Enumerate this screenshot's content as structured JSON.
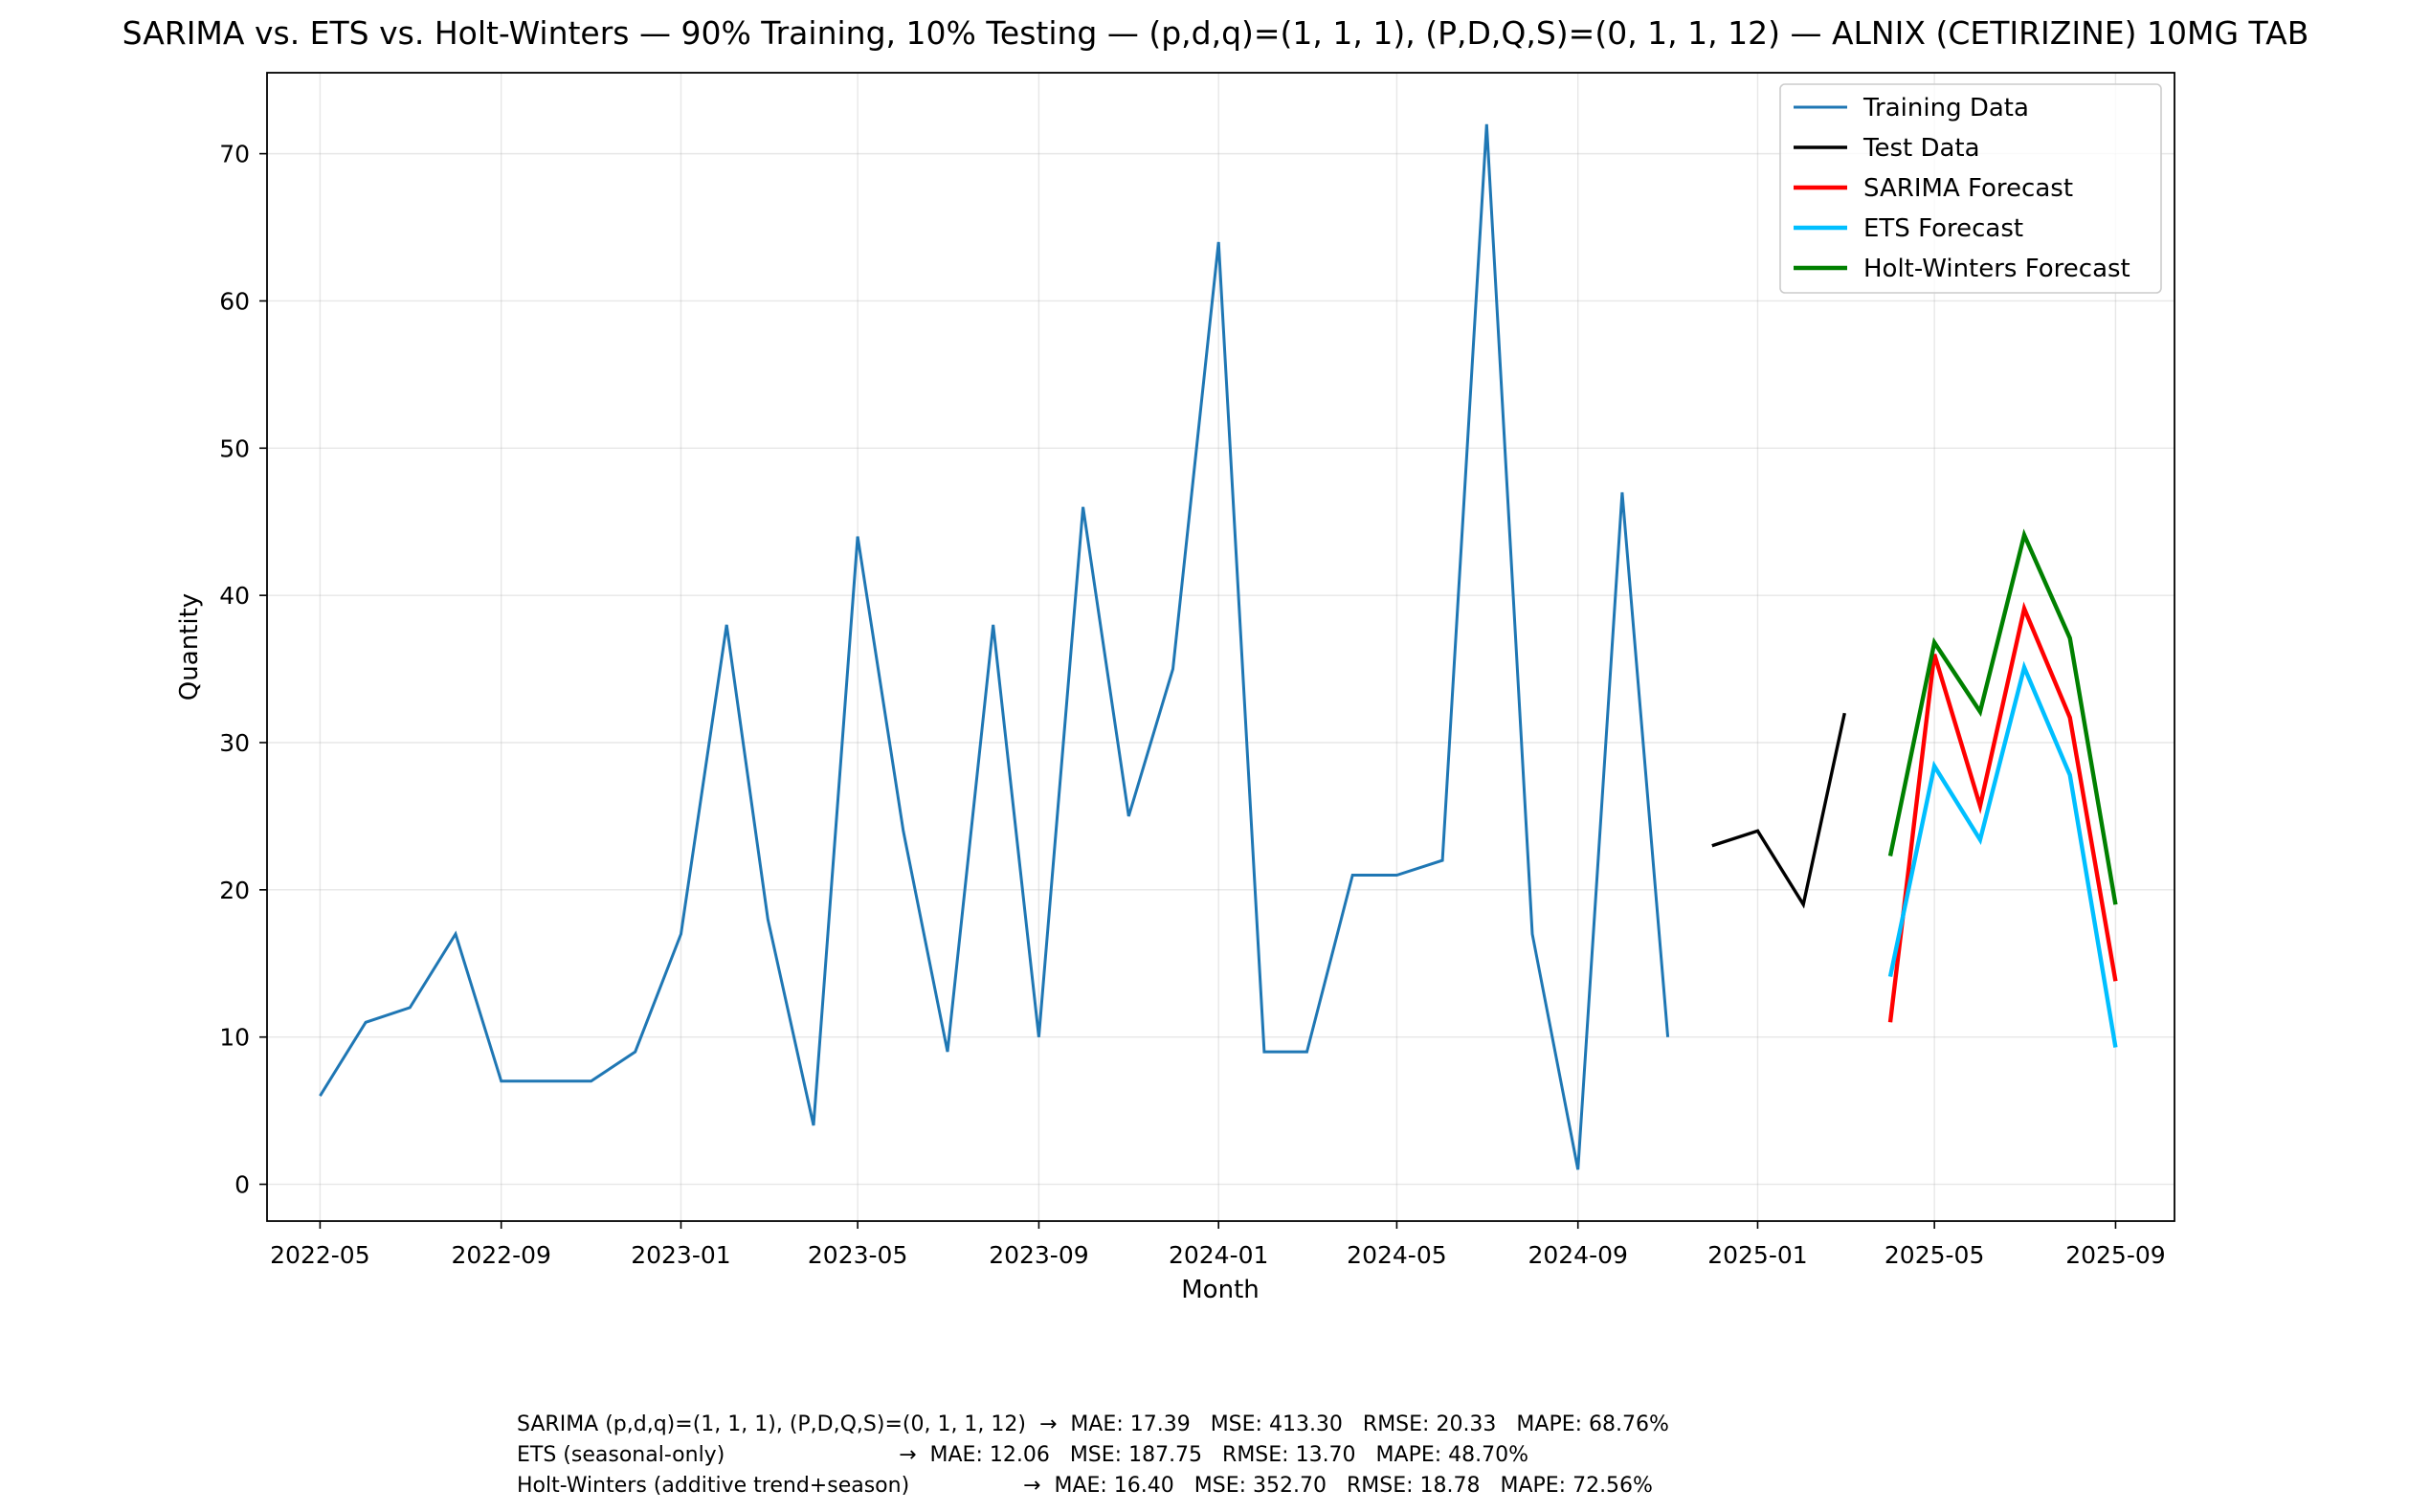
{
  "chart_data": {
    "type": "line",
    "title": "SARIMA vs. ETS vs. Holt-Winters — 90% Training, 10% Testing — (p,d,q)=(1, 1, 1), (P,D,Q,S)=(0, 1, 1, 12) — ALNIX (CETIRIZINE) 10MG TAB",
    "xlabel": "Month",
    "ylabel": "Quantity",
    "ylim": [
      -2.5,
      75.5
    ],
    "xlim": [
      "2022-03-26",
      "2025-10-11"
    ],
    "x_ticks": [
      "2022-05",
      "2022-09",
      "2023-01",
      "2023-05",
      "2023-09",
      "2024-01",
      "2024-05",
      "2024-09",
      "2025-01",
      "2025-05",
      "2025-09"
    ],
    "y_ticks": [
      0,
      10,
      20,
      30,
      40,
      50,
      60,
      70
    ],
    "grid": true,
    "legend_position": "top-right",
    "series": [
      {
        "name": "Training Data",
        "color": "#1f77b4",
        "x": [
          "2022-05",
          "2022-06",
          "2022-07",
          "2022-08",
          "2022-09",
          "2022-10",
          "2022-11",
          "2022-12",
          "2023-01",
          "2023-02",
          "2023-03",
          "2023-04",
          "2023-05",
          "2023-06",
          "2023-07",
          "2023-08",
          "2023-09",
          "2023-10",
          "2023-11",
          "2023-12",
          "2024-01",
          "2024-02",
          "2024-03",
          "2024-04",
          "2024-05",
          "2024-06",
          "2024-07",
          "2024-08",
          "2024-09",
          "2024-10",
          "2024-11"
        ],
        "values": [
          6,
          11,
          12,
          17,
          7,
          7,
          7,
          9,
          17,
          38,
          18,
          4,
          44,
          24,
          9,
          38,
          10,
          46,
          25,
          35,
          64,
          9,
          9,
          21,
          21,
          22,
          72,
          17,
          1,
          47,
          10
        ]
      },
      {
        "name": "Test Data",
        "color": "#000000",
        "x": [
          "2024-12",
          "2025-01",
          "2025-02",
          "2025-03"
        ],
        "values": [
          23,
          24,
          19,
          32
        ]
      },
      {
        "name": "SARIMA Forecast",
        "color": "#ff0000",
        "x": [
          "2025-04",
          "2025-05",
          "2025-06",
          "2025-07",
          "2025-08",
          "2025-09"
        ],
        "values": [
          11.0,
          36.0,
          25.7,
          39.1,
          31.7,
          13.8
        ]
      },
      {
        "name": "ETS Forecast",
        "color": "#00bfff",
        "x": [
          "2025-04",
          "2025-05",
          "2025-06",
          "2025-07",
          "2025-08",
          "2025-09"
        ],
        "values": [
          14.1,
          28.4,
          23.4,
          35.1,
          27.8,
          9.3
        ]
      },
      {
        "name": "Holt-Winters Forecast",
        "color": "#008000",
        "x": [
          "2025-04",
          "2025-05",
          "2025-06",
          "2025-07",
          "2025-08",
          "2025-09"
        ],
        "values": [
          22.3,
          36.8,
          32.1,
          44.1,
          37.1,
          19.0
        ]
      }
    ]
  },
  "metrics": [
    "SARIMA (p,d,q)=(1, 1, 1), (P,D,Q,S)=(0, 1, 1, 12)  →  MAE: 17.39   MSE: 413.30   RMSE: 20.33   MAPE: 68.76%",
    "ETS (seasonal-only)                          →  MAE: 12.06   MSE: 187.75   RMSE: 13.70   MAPE: 48.70%",
    "Holt-Winters (additive trend+season)                 →  MAE: 16.40   MSE: 352.70   RMSE: 18.78   MAPE: 72.56%"
  ]
}
